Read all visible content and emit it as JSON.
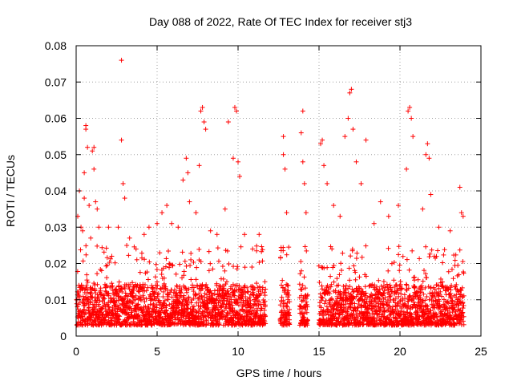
{
  "chart_data": {
    "type": "scatter",
    "title": "Day 088 of 2022, Rate Of TEC Index for receiver stj3",
    "xlabel": "GPS time / hours",
    "ylabel": "ROTI / TECUs",
    "xlim": [
      0,
      25
    ],
    "ylim": [
      0,
      0.08
    ],
    "xticks": [
      0,
      5,
      10,
      15,
      20,
      25
    ],
    "xtick_labels": [
      "0",
      "5",
      "10",
      "15",
      "20",
      "25"
    ],
    "yticks": [
      0,
      0.01,
      0.02,
      0.03,
      0.04,
      0.05,
      0.06,
      0.07,
      0.08
    ],
    "ytick_labels": [
      "0",
      "0.01",
      "0.02",
      "0.03",
      "0.04",
      "0.05",
      "0.06",
      "0.07",
      "0.08"
    ],
    "grid": true,
    "marker": "plus",
    "color": "#ff0000",
    "data_gaps_hours": [
      [
        11.7,
        12.6
      ],
      [
        13.2,
        13.8
      ],
      [
        14.3,
        15.0
      ]
    ],
    "series": [
      {
        "name": "ROTI",
        "points": [
          [
            0.1,
            0.033
          ],
          [
            0.2,
            0.04
          ],
          [
            0.3,
            0.03
          ],
          [
            0.4,
            0.029
          ],
          [
            0.5,
            0.038
          ],
          [
            0.5,
            0.045
          ],
          [
            0.6,
            0.057
          ],
          [
            0.6,
            0.058
          ],
          [
            0.7,
            0.052
          ],
          [
            0.8,
            0.036
          ],
          [
            0.9,
            0.027
          ],
          [
            1.0,
            0.051
          ],
          [
            1.1,
            0.052
          ],
          [
            1.1,
            0.046
          ],
          [
            1.2,
            0.037
          ],
          [
            1.3,
            0.035
          ],
          [
            1.4,
            0.03
          ],
          [
            2.0,
            0.03
          ],
          [
            2.2,
            0.022
          ],
          [
            2.6,
            0.03
          ],
          [
            2.8,
            0.076
          ],
          [
            2.8,
            0.054
          ],
          [
            2.9,
            0.042
          ],
          [
            3.0,
            0.038
          ],
          [
            3.3,
            0.027
          ],
          [
            3.7,
            0.024
          ],
          [
            4.2,
            0.028
          ],
          [
            4.5,
            0.03
          ],
          [
            5.0,
            0.031
          ],
          [
            5.3,
            0.034
          ],
          [
            5.6,
            0.036
          ],
          [
            5.9,
            0.031
          ],
          [
            6.3,
            0.03
          ],
          [
            6.6,
            0.043
          ],
          [
            6.8,
            0.049
          ],
          [
            6.9,
            0.045
          ],
          [
            7.0,
            0.037
          ],
          [
            7.4,
            0.034
          ],
          [
            7.6,
            0.047
          ],
          [
            7.7,
            0.062
          ],
          [
            7.8,
            0.063
          ],
          [
            7.9,
            0.059
          ],
          [
            8.0,
            0.057
          ],
          [
            8.3,
            0.029
          ],
          [
            8.7,
            0.028
          ],
          [
            9.2,
            0.035
          ],
          [
            9.4,
            0.059
          ],
          [
            9.7,
            0.049
          ],
          [
            9.8,
            0.063
          ],
          [
            9.9,
            0.062
          ],
          [
            10.0,
            0.048
          ],
          [
            10.1,
            0.044
          ],
          [
            10.4,
            0.028
          ],
          [
            10.9,
            0.024
          ],
          [
            11.3,
            0.028
          ],
          [
            12.8,
            0.055
          ],
          [
            12.8,
            0.05
          ],
          [
            12.9,
            0.046
          ],
          [
            13.0,
            0.034
          ],
          [
            13.9,
            0.056
          ],
          [
            14.0,
            0.062
          ],
          [
            14.0,
            0.048
          ],
          [
            14.1,
            0.042
          ],
          [
            14.2,
            0.034
          ],
          [
            15.1,
            0.053
          ],
          [
            15.2,
            0.054
          ],
          [
            15.3,
            0.047
          ],
          [
            15.5,
            0.042
          ],
          [
            15.9,
            0.036
          ],
          [
            16.3,
            0.033
          ],
          [
            16.6,
            0.055
          ],
          [
            16.8,
            0.06
          ],
          [
            16.9,
            0.067
          ],
          [
            17.0,
            0.068
          ],
          [
            17.1,
            0.057
          ],
          [
            17.3,
            0.048
          ],
          [
            17.6,
            0.042
          ],
          [
            17.9,
            0.054
          ],
          [
            18.4,
            0.031
          ],
          [
            18.8,
            0.037
          ],
          [
            19.3,
            0.033
          ],
          [
            19.9,
            0.036
          ],
          [
            20.4,
            0.046
          ],
          [
            20.5,
            0.062
          ],
          [
            20.6,
            0.063
          ],
          [
            20.7,
            0.06
          ],
          [
            20.8,
            0.055
          ],
          [
            21.4,
            0.035
          ],
          [
            21.6,
            0.05
          ],
          [
            21.7,
            0.053
          ],
          [
            21.8,
            0.049
          ],
          [
            21.9,
            0.039
          ],
          [
            22.4,
            0.03
          ],
          [
            23.1,
            0.029
          ],
          [
            23.7,
            0.041
          ],
          [
            23.8,
            0.034
          ],
          [
            23.9,
            0.033
          ]
        ],
        "baseline_band": {
          "hours": [
            0,
            11.7,
            12.6,
            13.2,
            13.8,
            14.3,
            15.0,
            24.0
          ],
          "typical_range": [
            0.003,
            0.018
          ]
        }
      }
    ]
  }
}
